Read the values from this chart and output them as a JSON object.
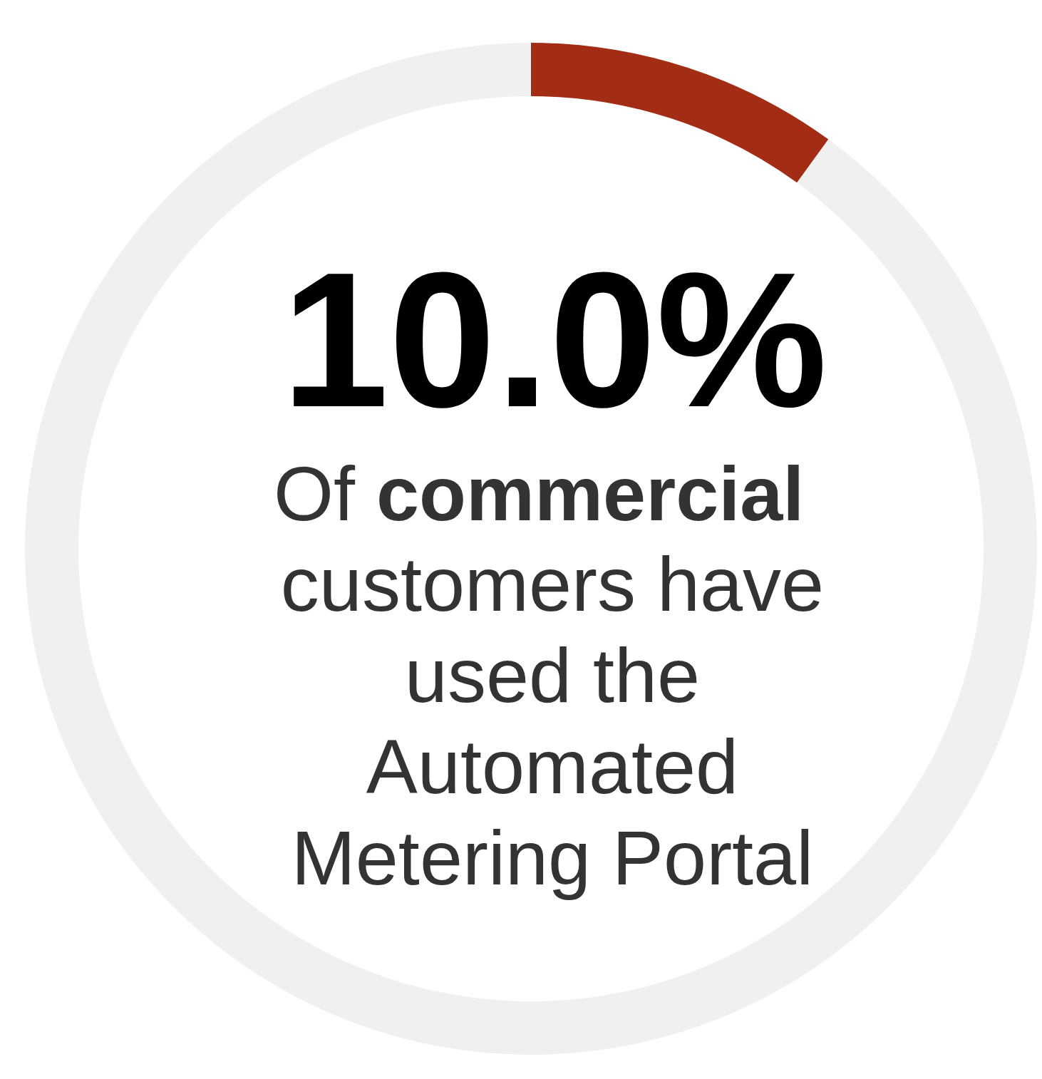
{
  "chart_data": {
    "type": "donut",
    "categories": [
      null,
      null
    ],
    "values": [
      10,
      90
    ],
    "colors": [
      "#a32d14",
      "#f0f0f0"
    ],
    "value_labels": [
      "10.0%",
      null
    ],
    "annotations": [
      "Of",
      "commercial",
      "customers have",
      "used the",
      "Automated",
      "Metering Portal"
    ]
  }
}
